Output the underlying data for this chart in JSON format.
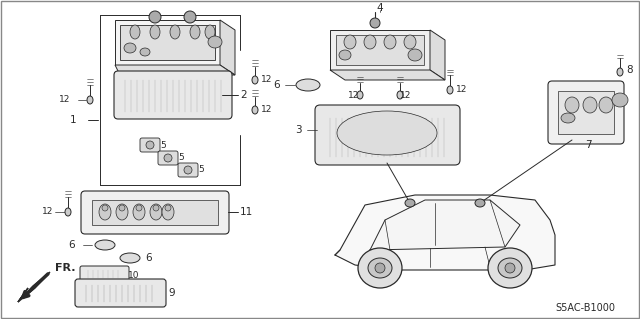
{
  "bg_color": "#ffffff",
  "diagram_code": "S5AC-B1000",
  "line_color": "#2a2a2a",
  "light_fill": "#e8e8e8",
  "hatch_fill": "#d0d0d0",
  "font_size": 7.5
}
